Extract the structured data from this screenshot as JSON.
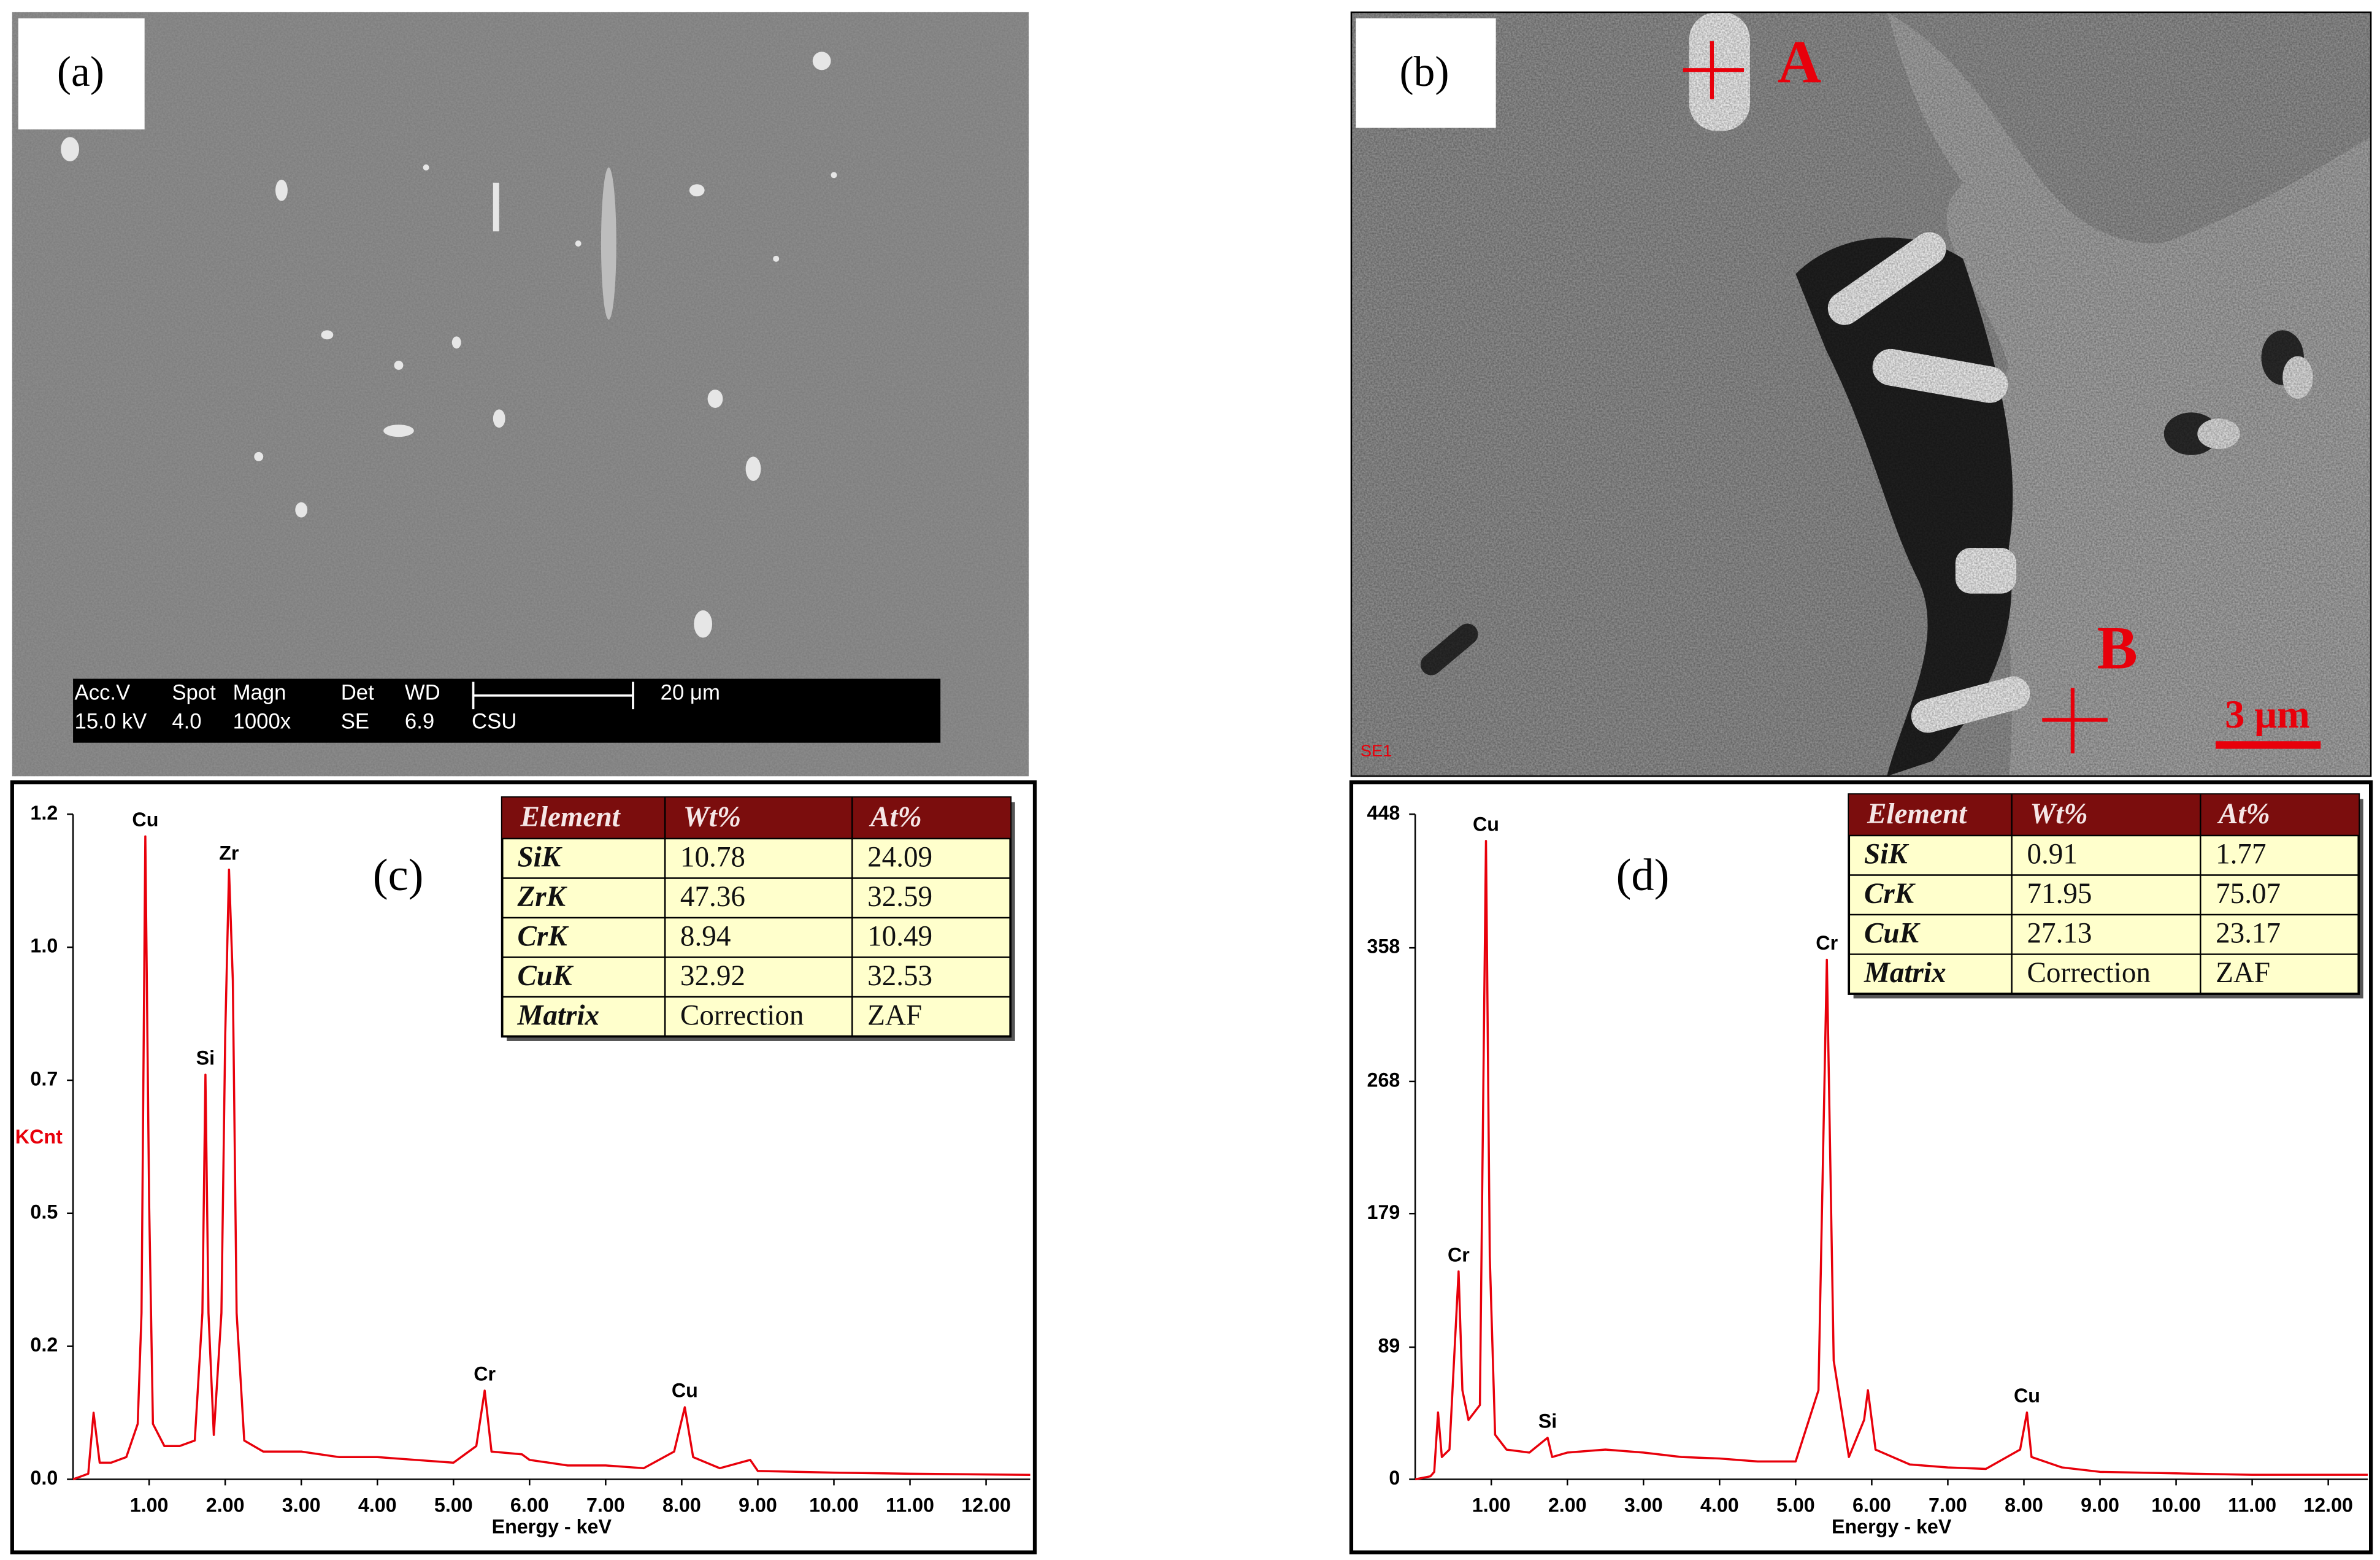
{
  "panels": [
    {
      "label": "(a)",
      "info_header": [
        "Acc.V",
        "Spot",
        "Magn",
        "Det",
        "WD"
      ],
      "info_values": [
        "15.0 kV",
        "4.0",
        "1000x",
        "SE",
        "6.9",
        "CSU"
      ],
      "scale": "20 μm"
    },
    {
      "label": "(b)",
      "points": [
        "A",
        "B"
      ],
      "detector": "SE1",
      "scale": "3 μm"
    }
  ],
  "chart_data": [
    {
      "type": "line",
      "label": "(c)",
      "x_label": "Energy - keV",
      "y_label": "KCnt",
      "x": [
        0,
        0.2,
        0.27,
        0.35,
        0.5,
        0.7,
        0.85,
        0.9,
        0.95,
        1.0,
        1.05,
        1.2,
        1.4,
        1.6,
        1.7,
        1.74,
        1.78,
        1.85,
        1.95,
        2.0,
        2.05,
        2.1,
        2.15,
        2.25,
        2.5,
        3.0,
        3.5,
        4.0,
        4.5,
        5.0,
        5.3,
        5.41,
        5.5,
        5.9,
        6.0,
        6.5,
        7.0,
        7.5,
        7.9,
        8.04,
        8.15,
        8.5,
        8.9,
        9.0,
        10.0,
        11.0,
        12.58
      ],
      "series": [
        {
          "color": "#e8000b",
          "values": [
            0,
            0.01,
            0.12,
            0.03,
            0.03,
            0.04,
            0.1,
            0.3,
            1.16,
            0.5,
            0.1,
            0.06,
            0.06,
            0.07,
            0.3,
            0.73,
            0.3,
            0.08,
            0.3,
            0.8,
            1.1,
            0.9,
            0.3,
            0.07,
            0.05,
            0.05,
            0.04,
            0.04,
            0.035,
            0.03,
            0.06,
            0.16,
            0.05,
            0.045,
            0.035,
            0.025,
            0.025,
            0.02,
            0.05,
            0.13,
            0.04,
            0.02,
            0.035,
            0.015,
            0.012,
            0.01,
            0.008
          ]
        }
      ],
      "xlim": [
        0,
        12.58
      ],
      "ylim": [
        0,
        1.2
      ],
      "xticks": [
        {
          "value": 1,
          "label": "1.00"
        },
        {
          "value": 2,
          "label": "2.00"
        },
        {
          "value": 3,
          "label": "3.00"
        },
        {
          "value": 4,
          "label": "4.00"
        },
        {
          "value": 5,
          "label": "5.00"
        },
        {
          "value": 6,
          "label": "6.00"
        },
        {
          "value": 7,
          "label": "7.00"
        },
        {
          "value": 8,
          "label": "8.00"
        },
        {
          "value": 9,
          "label": "9.00"
        },
        {
          "value": 10,
          "label": "10.00"
        },
        {
          "value": 11,
          "label": "11.00"
        },
        {
          "value": 12,
          "label": "12.00"
        }
      ],
      "yticks": [
        {
          "value": 0,
          "label": "0.0"
        },
        {
          "value": 0.24,
          "label": "0.2"
        },
        {
          "value": 0.48,
          "label": "0.5"
        },
        {
          "value": 0.72,
          "label": "0.7"
        },
        {
          "value": 0.96,
          "label": "1.0"
        },
        1.2
      ],
      "peak_labels": [
        {
          "text": "Cu",
          "x": 0.95,
          "y": 1.16
        },
        {
          "text": "Si",
          "x": 1.74,
          "y": 0.73
        },
        {
          "text": "Zr",
          "x": 2.05,
          "y": 1.1
        },
        {
          "text": "Cr",
          "x": 5.41,
          "y": 0.16
        },
        {
          "text": "Cu",
          "x": 8.04,
          "y": 0.13
        }
      ],
      "table": {
        "columns": [
          "Element",
          "Wt%",
          "At%"
        ],
        "rows": [
          [
            "SiK",
            10.78,
            24.09
          ],
          [
            "ZrK",
            47.36,
            32.59
          ],
          [
            "CrK",
            8.94,
            10.49
          ],
          [
            "CuK",
            32.92,
            32.53
          ],
          [
            "Matrix",
            "Correction",
            "ZAF"
          ]
        ]
      }
    },
    {
      "type": "line",
      "label": "(d)",
      "x_label": "Energy - keV",
      "x": [
        0,
        0.2,
        0.25,
        0.3,
        0.35,
        0.45,
        0.52,
        0.57,
        0.62,
        0.7,
        0.85,
        0.93,
        0.98,
        1.05,
        1.2,
        1.5,
        1.74,
        1.8,
        2.0,
        2.5,
        3.0,
        3.5,
        4.0,
        4.5,
        5.0,
        5.3,
        5.41,
        5.5,
        5.7,
        5.9,
        5.95,
        6.05,
        6.5,
        7.0,
        7.5,
        7.95,
        8.04,
        8.1,
        8.5,
        9.0,
        10.0,
        11.0,
        12.52
      ],
      "series": [
        {
          "color": "#e8000b",
          "values": [
            0,
            2,
            5,
            45,
            15,
            20,
            90,
            140,
            60,
            40,
            50,
            430,
            150,
            30,
            20,
            18,
            28,
            15,
            18,
            20,
            18,
            15,
            14,
            12,
            12,
            60,
            350,
            80,
            15,
            40,
            60,
            20,
            10,
            8,
            7,
            20,
            45,
            15,
            8,
            5,
            4,
            3,
            3
          ]
        }
      ],
      "xlim": [
        0,
        12.52
      ],
      "ylim": [
        0,
        448
      ],
      "xticks": [
        {
          "value": 1,
          "label": "1.00"
        },
        {
          "value": 2,
          "label": "2.00"
        },
        {
          "value": 3,
          "label": "3.00"
        },
        {
          "value": 4,
          "label": "4.00"
        },
        {
          "value": 5,
          "label": "5.00"
        },
        {
          "value": 6,
          "label": "6.00"
        },
        {
          "value": 7,
          "label": "7.00"
        },
        {
          "value": 8,
          "label": "8.00"
        },
        {
          "value": 9,
          "label": "9.00"
        },
        {
          "value": 10,
          "label": "10.00"
        },
        {
          "value": 11,
          "label": "11.00"
        },
        {
          "value": 12,
          "label": "12.00"
        }
      ],
      "yticks": [
        0,
        89,
        179,
        268,
        358,
        448
      ],
      "peak_labels": [
        {
          "text": "Cr",
          "x": 0.57,
          "y": 140
        },
        {
          "text": "Cu",
          "x": 0.93,
          "y": 430
        },
        {
          "text": "Si",
          "x": 1.74,
          "y": 28
        },
        {
          "text": "Cr",
          "x": 5.41,
          "y": 350
        },
        {
          "text": "Cu",
          "x": 8.04,
          "y": 45
        }
      ],
      "table": {
        "columns": [
          "Element",
          "Wt%",
          "At%"
        ],
        "rows": [
          [
            "SiK",
            0.91,
            1.77
          ],
          [
            "CrK",
            71.95,
            75.07
          ],
          [
            "CuK",
            27.13,
            23.17
          ],
          [
            "Matrix",
            "Correction",
            "ZAF"
          ]
        ]
      }
    }
  ]
}
